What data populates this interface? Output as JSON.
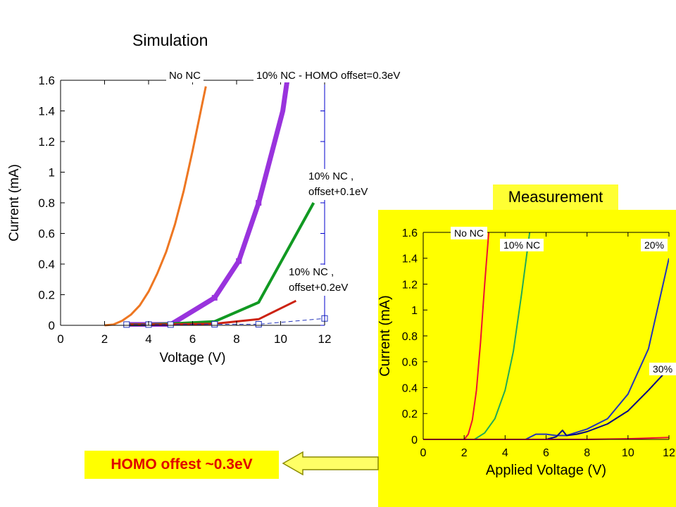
{
  "simulation": {
    "title": "Simulation",
    "labels": {
      "no_nc": "No NC",
      "nc10_offset03": "10% NC - HOMO offset=0.3eV",
      "nc10_offset01": "10% NC ,\noffset+0.1eV",
      "nc10_offset02": "10% NC ,\noffset+0.2eV"
    }
  },
  "measurement": {
    "title": "Measurement",
    "labels": {
      "no_nc": "No NC",
      "nc10": "10% NC",
      "nc20": "20%",
      "nc30": "30%"
    }
  },
  "conclusion": {
    "text": "HOMO offest ~0.3eV"
  },
  "colors": {
    "orange": "#ee7722",
    "purple": "#9933dd",
    "green": "#119922",
    "red": "#cc2211",
    "blue": "#2233bb",
    "yellow": "#ffff00",
    "measurement_red": "#ee1133",
    "measurement_green": "#22aa55",
    "navy": "#000088",
    "conclusion_text": "#e00000"
  },
  "icons": {
    "arrow": "left-arrow-icon"
  },
  "chart_data": [
    {
      "type": "line",
      "title": "Simulation",
      "xlabel": "Voltage (V)",
      "ylabel": "Current (mA)",
      "xlim": [
        0,
        12
      ],
      "ylim": [
        0,
        1.6
      ],
      "xticks": [
        0,
        2,
        4,
        6,
        8,
        10,
        12
      ],
      "yticks": [
        0,
        0.2,
        0.4,
        0.6,
        0.8,
        1,
        1.2,
        1.4,
        1.6
      ],
      "ytick_labels": [
        "0",
        "0.2",
        "0.4",
        "0.6",
        "0.8",
        "1",
        "1.2",
        "1.4",
        "1.6"
      ],
      "grid": false,
      "series": [
        {
          "name": "No NC",
          "color": "#ee7722",
          "width": 3,
          "marker": "none",
          "x": [
            2,
            2.4,
            2.8,
            3.2,
            3.6,
            4.0,
            4.4,
            4.8,
            5.2,
            5.6,
            6.0,
            6.4,
            6.6
          ],
          "y": [
            0,
            0.005,
            0.03,
            0.07,
            0.13,
            0.22,
            0.34,
            0.48,
            0.66,
            0.88,
            1.14,
            1.42,
            1.56
          ]
        },
        {
          "name": "10% NC - HOMO offset=0.3eV",
          "color": "#9933dd",
          "width": 7,
          "marker": "square-filled",
          "x": [
            3,
            4,
            5,
            7,
            8.1,
            9,
            10.1,
            10.3
          ],
          "y": [
            0.005,
            0.005,
            0.005,
            0.18,
            0.42,
            0.8,
            1.4,
            1.6
          ]
        },
        {
          "name": "10% NC , offset+0.1eV",
          "color": "#119922",
          "width": 4,
          "marker": "none",
          "x": [
            3,
            4,
            5,
            7,
            9,
            11.5
          ],
          "y": [
            0.005,
            0.005,
            0.01,
            0.025,
            0.15,
            0.8
          ]
        },
        {
          "name": "10% NC , offset+0.2eV",
          "color": "#cc2211",
          "width": 3,
          "marker": "none",
          "x": [
            3,
            4,
            5,
            7,
            9,
            10.7
          ],
          "y": [
            0.005,
            0.005,
            0.007,
            0.01,
            0.04,
            0.16
          ]
        },
        {
          "name": "",
          "color": "#2233bb",
          "width": 1,
          "marker": "square-open",
          "dashed": true,
          "x": [
            3,
            4,
            5,
            7,
            9,
            12
          ],
          "y": [
            0.005,
            0.005,
            0.005,
            0.007,
            0.007,
            0.045
          ]
        }
      ]
    },
    {
      "type": "line",
      "title": "Measurement",
      "xlabel": "Applied Voltage (V)",
      "ylabel": "Current (mA)",
      "xlim": [
        0,
        12
      ],
      "ylim": [
        0,
        1.6
      ],
      "xticks": [
        0,
        2,
        4,
        6,
        8,
        10,
        12
      ],
      "xtick_labels": [
        "0",
        "2",
        "4",
        "6",
        "8",
        "10",
        "12"
      ],
      "yticks": [
        0,
        0.2,
        0.4,
        0.6,
        0.8,
        1,
        1.2,
        1.4,
        1.6
      ],
      "ytick_labels": [
        "0",
        "0.2",
        "0.4",
        "0.6",
        "0.8",
        "1",
        "1.2",
        "1.4",
        "1.6"
      ],
      "grid": false,
      "series": [
        {
          "name": "No NC",
          "color": "#ee1133",
          "x": [
            0,
            2.0,
            2.2,
            2.4,
            2.6,
            2.8,
            3.0,
            3.2
          ],
          "y": [
            0,
            0,
            0.04,
            0.15,
            0.38,
            0.75,
            1.2,
            1.6
          ]
        },
        {
          "name": "10% NC",
          "color": "#22aa55",
          "x": [
            0,
            2.5,
            3.0,
            3.5,
            4.0,
            4.4,
            4.8,
            5.2
          ],
          "y": [
            0,
            0,
            0.05,
            0.16,
            0.38,
            0.68,
            1.12,
            1.6
          ]
        },
        {
          "name": "20%",
          "color": "#2233bb",
          "x": [
            0,
            5,
            5.5,
            6,
            6.5,
            7,
            8,
            9,
            10,
            11,
            12
          ],
          "y": [
            0,
            0,
            0.04,
            0.04,
            0.03,
            0.03,
            0.08,
            0.16,
            0.35,
            0.7,
            1.4
          ]
        },
        {
          "name": "30%",
          "color": "#000088",
          "x": [
            0,
            6,
            6.5,
            6.8,
            7.0,
            7.5,
            8,
            9,
            10,
            11,
            12
          ],
          "y": [
            0,
            0,
            0.02,
            0.07,
            0.03,
            0.04,
            0.06,
            0.12,
            0.22,
            0.38,
            0.55
          ]
        },
        {
          "name": "",
          "color": "#ee1133",
          "x": [
            0,
            8,
            10,
            12
          ],
          "y": [
            0,
            0,
            0.005,
            0.015
          ]
        }
      ]
    }
  ]
}
